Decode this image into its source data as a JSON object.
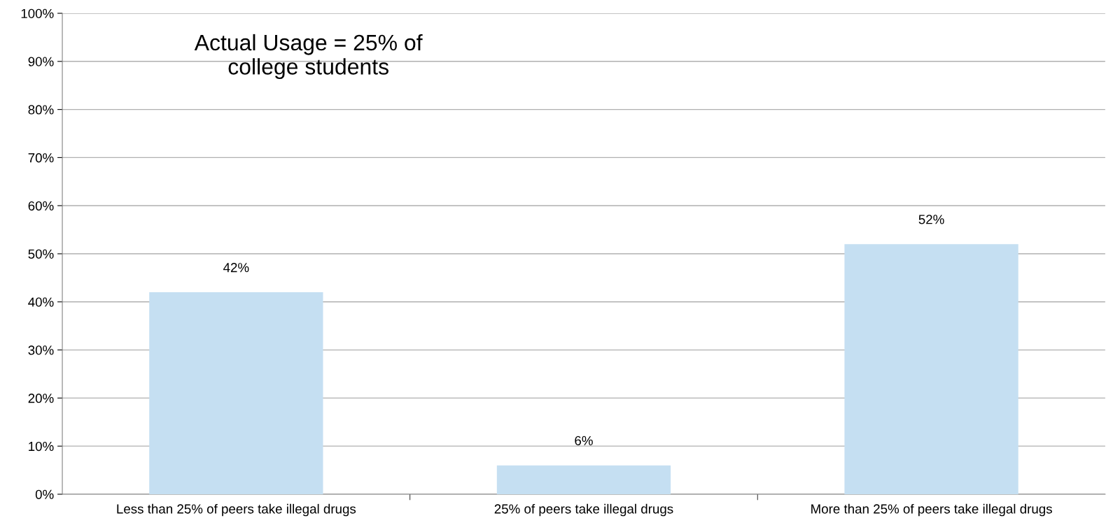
{
  "chart_data": {
    "type": "bar",
    "categories": [
      "Less than 25% of peers take illegal drugs",
      "25% of peers take illegal drugs",
      "More than 25% of peers take illegal drugs"
    ],
    "values": [
      42,
      6,
      52
    ],
    "value_labels": [
      "42%",
      "6%",
      "52%"
    ],
    "color": "#c5dff2",
    "ylim": [
      0,
      100
    ],
    "yticks": [
      {
        "value": 0,
        "label": "0%"
      },
      {
        "value": 10,
        "label": "10%"
      },
      {
        "value": 20,
        "label": "20%"
      },
      {
        "value": 30,
        "label": "30%"
      },
      {
        "value": 40,
        "label": "40%"
      },
      {
        "value": 50,
        "label": "50%"
      },
      {
        "value": 60,
        "label": "60%"
      },
      {
        "value": 70,
        "label": "70%"
      },
      {
        "value": 80,
        "label": "80%"
      },
      {
        "value": 90,
        "label": "90%"
      },
      {
        "value": 100,
        "label": "100%"
      }
    ],
    "grid": "y",
    "annotations": [
      "Actual Usage = 25% of\ncollege students"
    ]
  }
}
